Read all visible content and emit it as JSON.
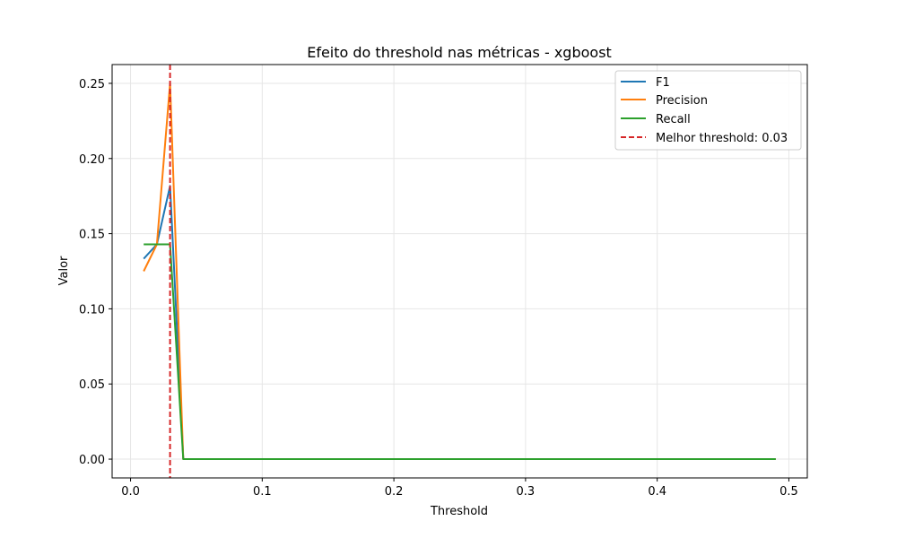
{
  "chart_data": {
    "type": "line",
    "title": "Efeito do threshold nas métricas - xgboost",
    "xlabel": "Threshold",
    "ylabel": "Valor",
    "xlim": [
      -0.014,
      0.514
    ],
    "ylim": [
      -0.0125,
      0.2625
    ],
    "xticks": [
      0.0,
      0.1,
      0.2,
      0.3,
      0.4,
      0.5
    ],
    "xtick_labels": [
      "0.0",
      "0.1",
      "0.2",
      "0.3",
      "0.4",
      "0.5"
    ],
    "yticks": [
      0.0,
      0.05,
      0.1,
      0.15,
      0.2,
      0.25
    ],
    "ytick_labels": [
      "0.00",
      "0.05",
      "0.10",
      "0.15",
      "0.20",
      "0.25"
    ],
    "grid": true,
    "legend_position": "top-right",
    "series": [
      {
        "name": "F1",
        "color": "#1f77b4",
        "x": [
          0.01,
          0.02,
          0.03,
          0.04,
          0.49
        ],
        "values": [
          0.1333,
          0.1429,
          0.1818,
          0.0,
          0.0
        ]
      },
      {
        "name": "Precision",
        "color": "#ff7f0e",
        "x": [
          0.01,
          0.02,
          0.03,
          0.04,
          0.49
        ],
        "values": [
          0.125,
          0.1429,
          0.25,
          0.0,
          0.0
        ]
      },
      {
        "name": "Recall",
        "color": "#2ca02c",
        "x": [
          0.01,
          0.02,
          0.03,
          0.04,
          0.49
        ],
        "values": [
          0.1429,
          0.1429,
          0.1429,
          0.0,
          0.0
        ]
      }
    ],
    "vline": {
      "x": 0.03,
      "color": "#d62728",
      "style": "dashed",
      "label": "Melhor threshold: 0.03"
    }
  }
}
